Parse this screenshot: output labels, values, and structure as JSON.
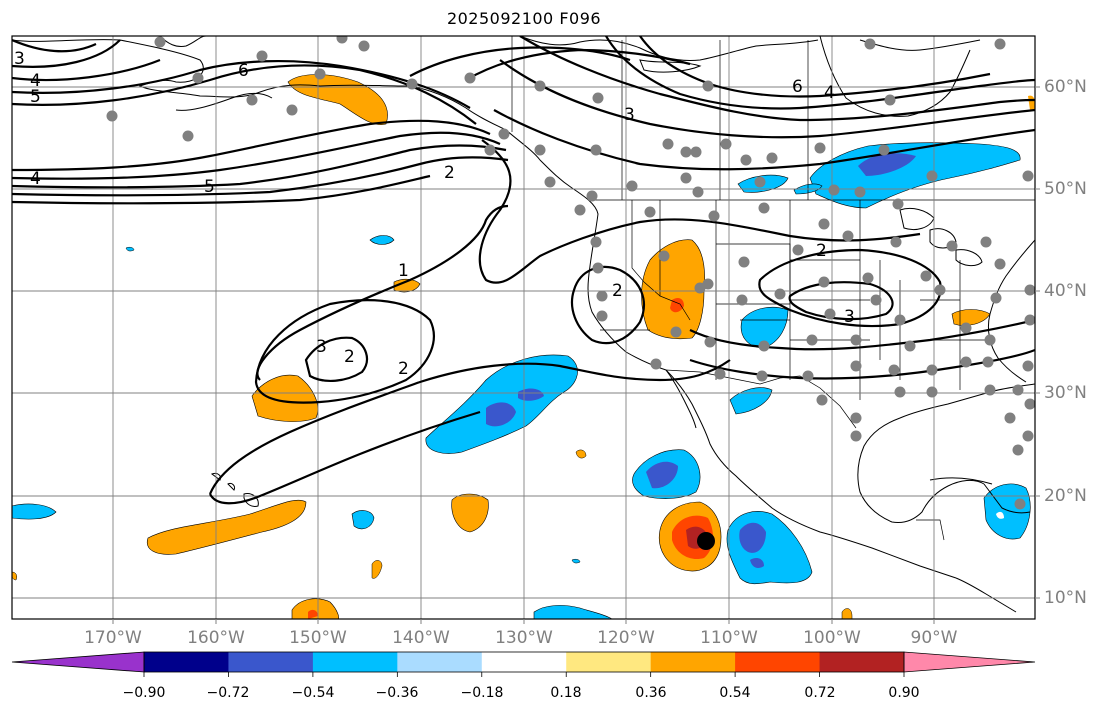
{
  "title": "2025092100 F096",
  "map": {
    "projection": "PlateCarree",
    "lon_range": [
      -180,
      -80
    ],
    "lat_range": [
      8,
      65
    ],
    "lon_ticks": [
      "170°W",
      "160°W",
      "150°W",
      "140°W",
      "130°W",
      "120°W",
      "110°W",
      "100°W",
      "90°W"
    ],
    "lat_ticks": [
      "10°N",
      "20°N",
      "30°N",
      "40°N",
      "50°N",
      "60°N"
    ],
    "grid": true,
    "features": [
      "coastlines",
      "country borders",
      "US state borders",
      "Canadian province borders"
    ]
  },
  "contour_labels": [
    "3",
    "4",
    "5",
    "6",
    "6",
    "4",
    "3",
    "2",
    "5",
    "4",
    "1",
    "2",
    "2",
    "3",
    "2",
    "3",
    "2"
  ],
  "colorbar": {
    "ticks": [
      "−0.90",
      "−0.72",
      "−0.54",
      "−0.36",
      "−0.18",
      "0.18",
      "0.36",
      "0.54",
      "0.72",
      "0.90"
    ],
    "colors": [
      "#9932cc",
      "#00008b",
      "#3a57cc",
      "#00bfff",
      "#aadcff",
      "#ffffff",
      "#ffe880",
      "#ffa500",
      "#ff4500",
      "#b22222",
      "#ff88aa"
    ],
    "extend": "both"
  },
  "markers": {
    "station_color": "#808080",
    "storm_center_color": "#000000"
  }
}
